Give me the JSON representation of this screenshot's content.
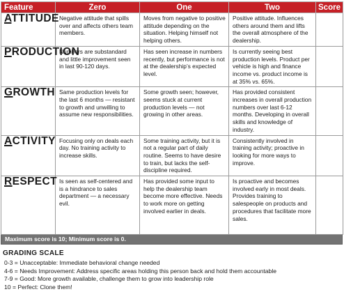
{
  "headers": [
    "Feature",
    "Zero",
    "One",
    "Two",
    "Score"
  ],
  "rows": [
    {
      "first": "A",
      "rest": "TTITUDE",
      "zero": "Negative attitude that spills over and affects others team members.",
      "one": "Moves from negative to positive attitude depending on the situation. Helping himself not helping others.",
      "two": "Positive attitude. Influences others around them and lifts the overall atmosphere of the dealership.",
      "score": ""
    },
    {
      "first": "P",
      "rest": "RODUCTION",
      "zero": "Numbers are substandard and little improvement seen in last 90-120 days.",
      "one": "Has seen increase in numbers recently, but performance is not at the dealership’s expected level.",
      "two": "Is currently seeing best production levels. Product per vehicle is high and finance income vs. product income is at 35% vs. 65%.",
      "score": ""
    },
    {
      "first": "G",
      "rest": "ROWTH",
      "zero": "Same production levels for the last 6 months — resistant to growth and unwilling to assume new responsibilities.",
      "one": "Some growth seen; however, seems stuck at current production levels — not growing in other areas.",
      "two": "Has provided consistent increases in overall production numbers over last 6-12 months. Developing in overall skills and knowledge of industry.",
      "score": ""
    },
    {
      "first": "A",
      "rest": "CTIVITY",
      "zero": "Focusing only on deals each day. No training activity to increase skills.",
      "one": "Some training activity, but it is not a regular part of daily routine. Seems to have desire to train, but lacks the self-discipline required.",
      "two": "Consistently involved in training activity; proactive in looking for more ways to improve.",
      "score": ""
    },
    {
      "first": "R",
      "rest": "ESPECT",
      "zero": "Is seen as self-centered and is a hindrance to sales department — a necessary evil.",
      "one": "Has provided some input to help the dealership team become more effective. Needs to work more on getting involved earlier in deals.",
      "two": "Is proactive and becomes involved early in most deals. Provides training to salespeople on products and procedures that facilitate more sales.",
      "score": ""
    }
  ],
  "footer_note": "Maximum score is 10; Minimum score is 0.",
  "grading": {
    "title": "GRADING SCALE",
    "items": [
      "0-3 = Unacceptable: Immediate behavioral change needed",
      "4-6 = Needs Improvement: Address specific areas holding this person back and hold them accountable",
      "7-9 = Good: More growth available, challenge them to grow into leadership role",
      "10 = Perfect: Clone them!"
    ]
  },
  "colors": {
    "header_bg": "#c62026",
    "footer_bg": "#737373"
  }
}
